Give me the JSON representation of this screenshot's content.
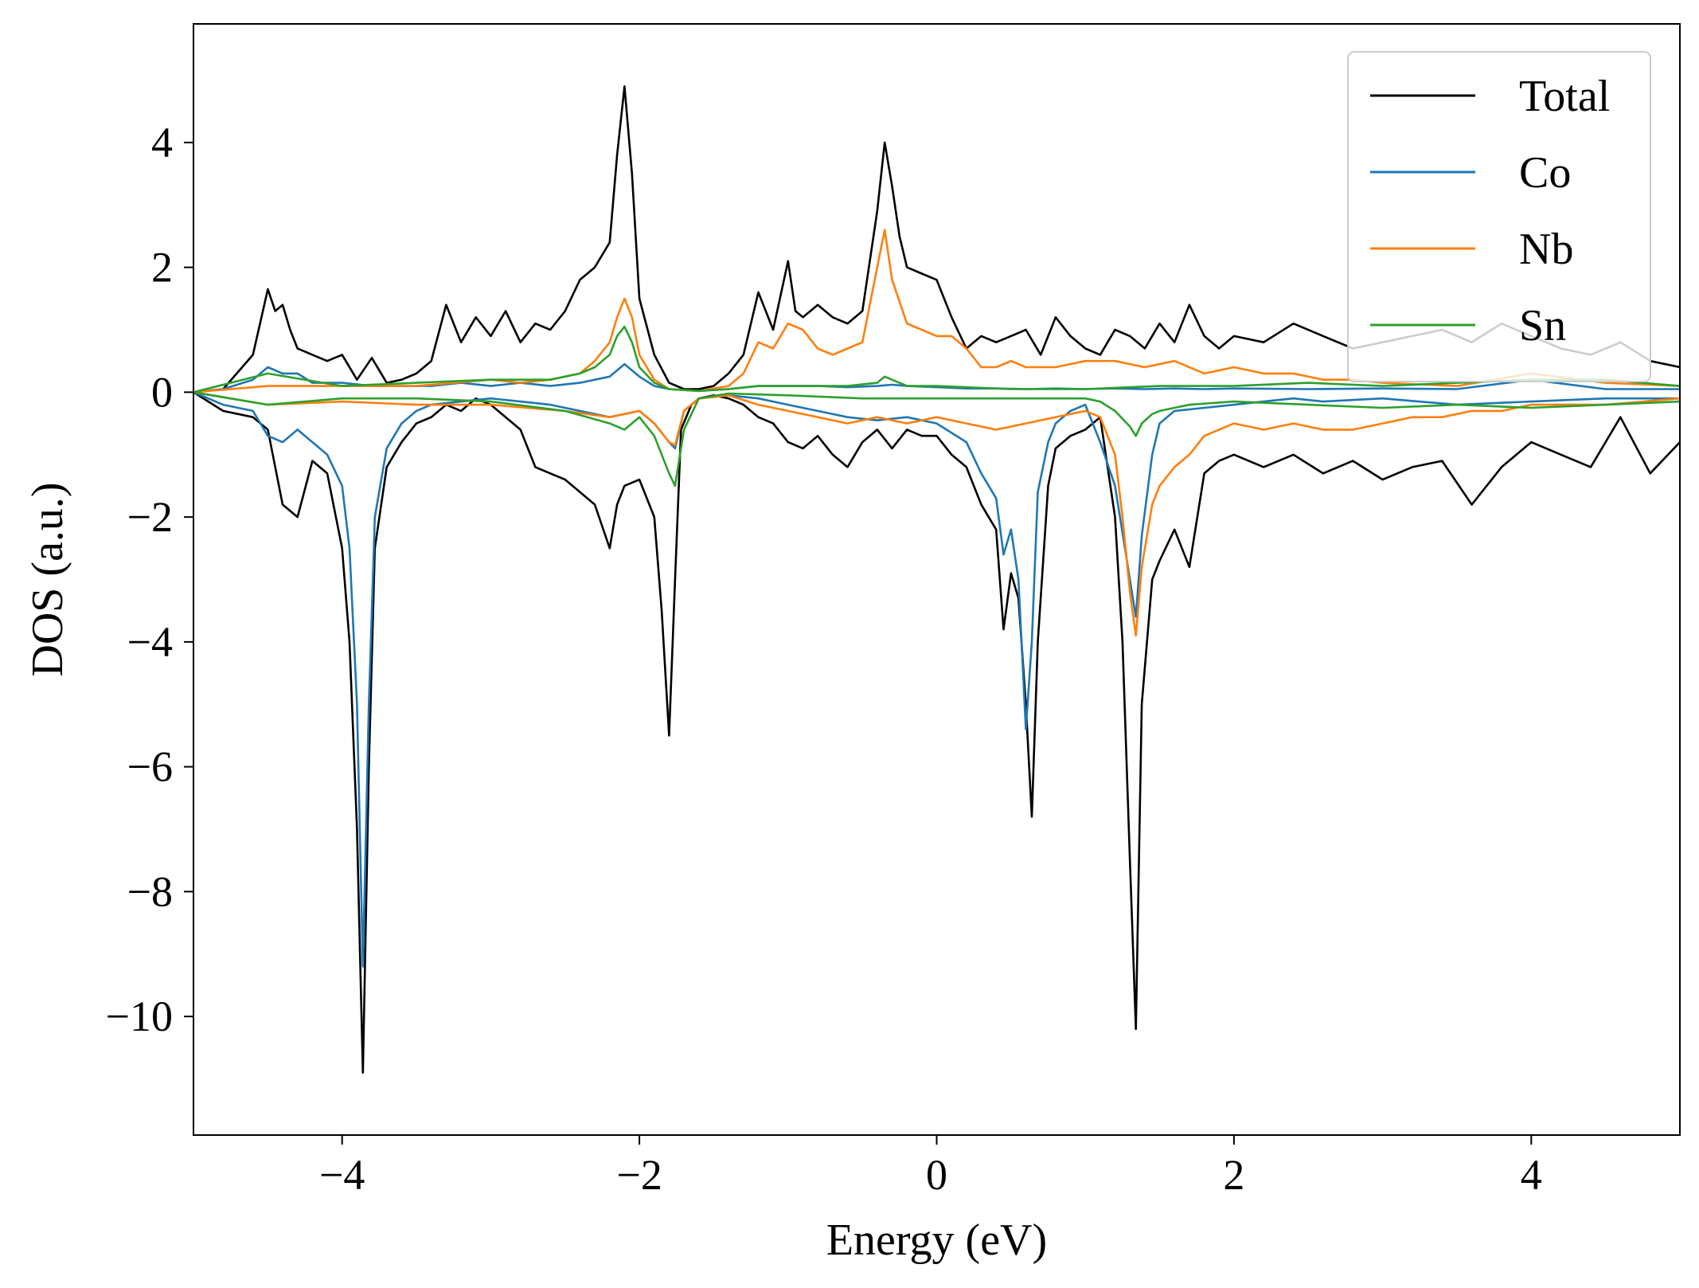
{
  "chart_data": {
    "type": "line",
    "title": "",
    "xlabel": "Energy (eV)",
    "ylabel": "DOS (a.u.)",
    "xlim": [
      -5,
      5
    ],
    "ylim": [
      -11.9,
      5.9
    ],
    "xticks": [
      -4,
      -2,
      0,
      2,
      4
    ],
    "yticks": [
      -10,
      -8,
      -6,
      -4,
      -2,
      0,
      2,
      4
    ],
    "grid": false,
    "legend_position": "top-right",
    "colors": {
      "Total": "#000000",
      "Co": "#1f77b4",
      "Nb": "#ff7f0e",
      "Sn": "#2ca02c"
    },
    "series": [
      {
        "name": "Total",
        "spin_up": {
          "x": [
            -5.0,
            -4.8,
            -4.6,
            -4.5,
            -4.45,
            -4.4,
            -4.35,
            -4.3,
            -4.2,
            -4.1,
            -4.0,
            -3.9,
            -3.8,
            -3.7,
            -3.6,
            -3.5,
            -3.4,
            -3.3,
            -3.2,
            -3.1,
            -3.0,
            -2.9,
            -2.8,
            -2.7,
            -2.6,
            -2.5,
            -2.4,
            -2.3,
            -2.2,
            -2.15,
            -2.1,
            -2.05,
            -2.0,
            -1.9,
            -1.8,
            -1.7,
            -1.6,
            -1.5,
            -1.4,
            -1.3,
            -1.2,
            -1.1,
            -1.0,
            -0.95,
            -0.9,
            -0.8,
            -0.7,
            -0.6,
            -0.5,
            -0.4,
            -0.35,
            -0.3,
            -0.25,
            -0.2,
            -0.1,
            0.0,
            0.1,
            0.2,
            0.3,
            0.4,
            0.5,
            0.6,
            0.7,
            0.8,
            0.9,
            1.0,
            1.1,
            1.2,
            1.3,
            1.4,
            1.5,
            1.6,
            1.7,
            1.8,
            1.9,
            2.0,
            2.2,
            2.4,
            2.6,
            2.8,
            3.0,
            3.2,
            3.4,
            3.6,
            3.8,
            4.0,
            4.2,
            4.4,
            4.6,
            4.8,
            5.0
          ],
          "y": [
            0.0,
            0.05,
            0.6,
            1.65,
            1.3,
            1.4,
            1.0,
            0.7,
            0.6,
            0.5,
            0.6,
            0.2,
            0.55,
            0.15,
            0.2,
            0.3,
            0.5,
            1.4,
            0.8,
            1.2,
            0.9,
            1.3,
            0.8,
            1.1,
            1.0,
            1.3,
            1.8,
            2.0,
            2.4,
            3.8,
            4.9,
            3.5,
            1.5,
            0.6,
            0.15,
            0.05,
            0.05,
            0.1,
            0.3,
            0.6,
            1.6,
            1.0,
            2.1,
            1.3,
            1.2,
            1.4,
            1.2,
            1.1,
            1.3,
            2.9,
            4.0,
            3.3,
            2.5,
            2.0,
            1.9,
            1.8,
            1.2,
            0.7,
            0.9,
            0.8,
            0.9,
            1.0,
            0.6,
            1.2,
            0.9,
            0.7,
            0.6,
            1.0,
            0.9,
            0.7,
            1.1,
            0.8,
            1.4,
            0.9,
            0.7,
            0.9,
            0.8,
            1.1,
            0.9,
            0.7,
            0.8,
            0.9,
            1.0,
            0.8,
            1.1,
            0.9,
            0.7,
            0.6,
            0.8,
            0.5,
            0.4
          ]
        },
        "spin_down": {
          "x": [
            -5.0,
            -4.8,
            -4.6,
            -4.5,
            -4.4,
            -4.3,
            -4.2,
            -4.1,
            -4.0,
            -3.95,
            -3.9,
            -3.86,
            -3.82,
            -3.78,
            -3.7,
            -3.6,
            -3.5,
            -3.4,
            -3.3,
            -3.2,
            -3.1,
            -3.0,
            -2.9,
            -2.8,
            -2.7,
            -2.6,
            -2.5,
            -2.4,
            -2.3,
            -2.2,
            -2.15,
            -2.1,
            -2.0,
            -1.9,
            -1.85,
            -1.8,
            -1.76,
            -1.72,
            -1.65,
            -1.6,
            -1.5,
            -1.4,
            -1.3,
            -1.2,
            -1.1,
            -1.0,
            -0.9,
            -0.8,
            -0.7,
            -0.6,
            -0.5,
            -0.4,
            -0.3,
            -0.2,
            -0.1,
            0.0,
            0.1,
            0.2,
            0.3,
            0.4,
            0.45,
            0.5,
            0.55,
            0.6,
            0.64,
            0.68,
            0.75,
            0.8,
            0.9,
            1.0,
            1.1,
            1.2,
            1.25,
            1.3,
            1.34,
            1.38,
            1.45,
            1.5,
            1.6,
            1.7,
            1.8,
            1.9,
            2.0,
            2.2,
            2.4,
            2.6,
            2.8,
            3.0,
            3.2,
            3.4,
            3.6,
            3.8,
            4.0,
            4.2,
            4.4,
            4.6,
            4.8,
            5.0
          ],
          "y": [
            0.0,
            -0.3,
            -0.4,
            -0.6,
            -1.8,
            -2.0,
            -1.1,
            -1.3,
            -2.5,
            -4.0,
            -7.0,
            -10.9,
            -6.0,
            -2.5,
            -1.2,
            -0.8,
            -0.5,
            -0.4,
            -0.2,
            -0.3,
            -0.1,
            -0.2,
            -0.4,
            -0.6,
            -1.2,
            -1.3,
            -1.4,
            -1.6,
            -1.8,
            -2.5,
            -1.8,
            -1.5,
            -1.4,
            -2.0,
            -3.5,
            -5.5,
            -3.0,
            -0.6,
            -0.2,
            -0.1,
            -0.05,
            -0.1,
            -0.2,
            -0.4,
            -0.5,
            -0.8,
            -0.9,
            -0.7,
            -1.0,
            -1.2,
            -0.8,
            -0.6,
            -0.9,
            -0.6,
            -0.7,
            -0.7,
            -1.0,
            -1.2,
            -1.8,
            -2.2,
            -3.8,
            -2.9,
            -3.3,
            -5.0,
            -6.8,
            -4.0,
            -1.5,
            -0.9,
            -0.7,
            -0.6,
            -0.4,
            -2.0,
            -4.0,
            -7.5,
            -10.2,
            -5.0,
            -3.0,
            -2.7,
            -2.2,
            -2.8,
            -1.3,
            -1.1,
            -1.0,
            -1.2,
            -1.0,
            -1.3,
            -1.1,
            -1.4,
            -1.2,
            -1.1,
            -1.8,
            -1.2,
            -0.8,
            -1.0,
            -1.2,
            -0.4,
            -1.3,
            -0.8
          ]
        }
      },
      {
        "name": "Co",
        "spin_up": {
          "x": [
            -5.0,
            -4.8,
            -4.6,
            -4.5,
            -4.4,
            -4.3,
            -4.2,
            -4.0,
            -3.8,
            -3.6,
            -3.4,
            -3.2,
            -3.0,
            -2.8,
            -2.6,
            -2.4,
            -2.2,
            -2.1,
            -2.0,
            -1.9,
            -1.8,
            -1.6,
            -1.4,
            -1.2,
            -1.0,
            -0.8,
            -0.6,
            -0.4,
            -0.3,
            -0.2,
            0.0,
            0.2,
            0.4,
            0.6,
            0.8,
            1.0,
            1.2,
            1.4,
            1.6,
            1.8,
            2.0,
            2.5,
            3.0,
            3.5,
            4.0,
            4.5,
            5.0
          ],
          "y": [
            0.0,
            0.05,
            0.2,
            0.4,
            0.3,
            0.3,
            0.15,
            0.15,
            0.1,
            0.1,
            0.1,
            0.15,
            0.1,
            0.15,
            0.1,
            0.15,
            0.25,
            0.45,
            0.25,
            0.1,
            0.05,
            0.02,
            0.05,
            0.1,
            0.1,
            0.1,
            0.08,
            0.1,
            0.12,
            0.1,
            0.08,
            0.06,
            0.06,
            0.05,
            0.06,
            0.05,
            0.06,
            0.05,
            0.06,
            0.05,
            0.06,
            0.05,
            0.06,
            0.05,
            0.2,
            0.05,
            0.05
          ]
        },
        "spin_down": {
          "x": [
            -5.0,
            -4.8,
            -4.6,
            -4.5,
            -4.4,
            -4.3,
            -4.2,
            -4.1,
            -4.0,
            -3.95,
            -3.9,
            -3.86,
            -3.82,
            -3.78,
            -3.7,
            -3.6,
            -3.5,
            -3.4,
            -3.2,
            -3.0,
            -2.8,
            -2.6,
            -2.4,
            -2.2,
            -2.0,
            -1.9,
            -1.8,
            -1.76,
            -1.7,
            -1.6,
            -1.4,
            -1.2,
            -1.0,
            -0.8,
            -0.6,
            -0.4,
            -0.2,
            0.0,
            0.2,
            0.3,
            0.4,
            0.45,
            0.5,
            0.55,
            0.6,
            0.64,
            0.68,
            0.75,
            0.8,
            0.9,
            1.0,
            1.1,
            1.2,
            1.3,
            1.34,
            1.38,
            1.45,
            1.5,
            1.6,
            1.8,
            2.0,
            2.2,
            2.4,
            2.6,
            3.0,
            3.5,
            4.0,
            4.5,
            5.0
          ],
          "y": [
            0.0,
            -0.2,
            -0.3,
            -0.7,
            -0.8,
            -0.6,
            -0.8,
            -1.0,
            -1.5,
            -2.5,
            -5.0,
            -9.2,
            -5.0,
            -2.0,
            -0.9,
            -0.5,
            -0.3,
            -0.2,
            -0.15,
            -0.1,
            -0.15,
            -0.2,
            -0.3,
            -0.4,
            -0.3,
            -0.5,
            -0.8,
            -0.9,
            -0.3,
            -0.1,
            -0.05,
            -0.1,
            -0.2,
            -0.3,
            -0.4,
            -0.45,
            -0.4,
            -0.5,
            -0.8,
            -1.3,
            -1.7,
            -2.6,
            -2.2,
            -3.0,
            -5.4,
            -4.0,
            -1.6,
            -0.8,
            -0.5,
            -0.3,
            -0.2,
            -0.8,
            -1.5,
            -3.0,
            -3.6,
            -2.3,
            -1.0,
            -0.5,
            -0.3,
            -0.25,
            -0.2,
            -0.15,
            -0.1,
            -0.15,
            -0.1,
            -0.2,
            -0.15,
            -0.1,
            -0.1
          ]
        }
      },
      {
        "name": "Nb",
        "spin_up": {
          "x": [
            -5.0,
            -4.5,
            -4.0,
            -3.5,
            -3.0,
            -2.8,
            -2.6,
            -2.4,
            -2.3,
            -2.2,
            -2.15,
            -2.1,
            -2.05,
            -2.0,
            -1.9,
            -1.8,
            -1.6,
            -1.4,
            -1.3,
            -1.2,
            -1.1,
            -1.0,
            -0.9,
            -0.8,
            -0.7,
            -0.6,
            -0.5,
            -0.4,
            -0.35,
            -0.3,
            -0.2,
            -0.1,
            0.0,
            0.1,
            0.2,
            0.3,
            0.4,
            0.5,
            0.6,
            0.8,
            1.0,
            1.2,
            1.4,
            1.6,
            1.8,
            2.0,
            2.2,
            2.4,
            2.6,
            2.8,
            3.0,
            3.5,
            4.0,
            4.5,
            5.0
          ],
          "y": [
            0.0,
            0.1,
            0.1,
            0.1,
            0.2,
            0.15,
            0.2,
            0.3,
            0.5,
            0.8,
            1.2,
            1.5,
            1.2,
            0.6,
            0.2,
            0.05,
            0.02,
            0.1,
            0.3,
            0.8,
            0.7,
            1.1,
            1.0,
            0.7,
            0.6,
            0.7,
            0.8,
            2.0,
            2.6,
            1.8,
            1.1,
            1.0,
            0.9,
            0.9,
            0.7,
            0.4,
            0.4,
            0.5,
            0.4,
            0.4,
            0.5,
            0.5,
            0.4,
            0.5,
            0.3,
            0.4,
            0.3,
            0.3,
            0.2,
            0.2,
            0.15,
            0.1,
            0.3,
            0.15,
            0.1
          ]
        },
        "spin_down": {
          "x": [
            -5.0,
            -4.5,
            -4.0,
            -3.5,
            -3.0,
            -2.5,
            -2.2,
            -2.0,
            -1.9,
            -1.8,
            -1.76,
            -1.7,
            -1.6,
            -1.4,
            -1.2,
            -1.0,
            -0.8,
            -0.6,
            -0.4,
            -0.2,
            0.0,
            0.2,
            0.4,
            0.6,
            0.8,
            1.0,
            1.1,
            1.2,
            1.25,
            1.3,
            1.34,
            1.38,
            1.45,
            1.5,
            1.6,
            1.7,
            1.8,
            2.0,
            2.2,
            2.4,
            2.6,
            2.8,
            3.0,
            3.2,
            3.4,
            3.6,
            3.8,
            4.0,
            4.5,
            5.0
          ],
          "y": [
            0.0,
            -0.2,
            -0.15,
            -0.2,
            -0.2,
            -0.3,
            -0.4,
            -0.3,
            -0.5,
            -0.8,
            -0.85,
            -0.3,
            -0.1,
            -0.05,
            -0.2,
            -0.3,
            -0.4,
            -0.5,
            -0.4,
            -0.5,
            -0.4,
            -0.5,
            -0.6,
            -0.5,
            -0.4,
            -0.3,
            -0.4,
            -1.0,
            -2.0,
            -3.2,
            -3.9,
            -2.8,
            -1.8,
            -1.5,
            -1.2,
            -1.0,
            -0.7,
            -0.5,
            -0.6,
            -0.5,
            -0.6,
            -0.6,
            -0.5,
            -0.4,
            -0.4,
            -0.3,
            -0.3,
            -0.2,
            -0.2,
            -0.1
          ]
        }
      },
      {
        "name": "Sn",
        "spin_up": {
          "x": [
            -5.0,
            -4.5,
            -4.0,
            -3.5,
            -3.0,
            -2.6,
            -2.4,
            -2.3,
            -2.2,
            -2.15,
            -2.1,
            -2.05,
            -2.0,
            -1.9,
            -1.8,
            -1.6,
            -1.4,
            -1.2,
            -1.0,
            -0.8,
            -0.6,
            -0.4,
            -0.35,
            -0.3,
            -0.2,
            0.0,
            0.5,
            1.0,
            1.5,
            2.0,
            2.5,
            3.0,
            3.5,
            4.0,
            4.5,
            5.0
          ],
          "y": [
            0.0,
            0.3,
            0.1,
            0.15,
            0.2,
            0.2,
            0.3,
            0.4,
            0.6,
            0.9,
            1.05,
            0.8,
            0.4,
            0.15,
            0.05,
            0.02,
            0.05,
            0.1,
            0.1,
            0.1,
            0.1,
            0.15,
            0.25,
            0.2,
            0.1,
            0.1,
            0.05,
            0.05,
            0.1,
            0.1,
            0.15,
            0.1,
            0.15,
            0.2,
            0.2,
            0.1
          ]
        },
        "spin_down": {
          "x": [
            -5.0,
            -4.5,
            -4.0,
            -3.5,
            -3.0,
            -2.5,
            -2.2,
            -2.1,
            -2.0,
            -1.9,
            -1.8,
            -1.76,
            -1.7,
            -1.6,
            -1.4,
            -1.0,
            -0.5,
            0.0,
            0.5,
            1.0,
            1.1,
            1.2,
            1.3,
            1.34,
            1.38,
            1.45,
            1.5,
            1.7,
            2.0,
            2.5,
            3.0,
            3.5,
            4.0,
            4.5,
            5.0
          ],
          "y": [
            0.0,
            -0.2,
            -0.1,
            -0.1,
            -0.15,
            -0.3,
            -0.5,
            -0.6,
            -0.4,
            -0.7,
            -1.3,
            -1.5,
            -0.6,
            -0.1,
            -0.02,
            -0.05,
            -0.1,
            -0.1,
            -0.1,
            -0.1,
            -0.15,
            -0.3,
            -0.55,
            -0.7,
            -0.5,
            -0.35,
            -0.3,
            -0.2,
            -0.15,
            -0.2,
            -0.25,
            -0.2,
            -0.25,
            -0.2,
            -0.15
          ]
        }
      }
    ]
  }
}
